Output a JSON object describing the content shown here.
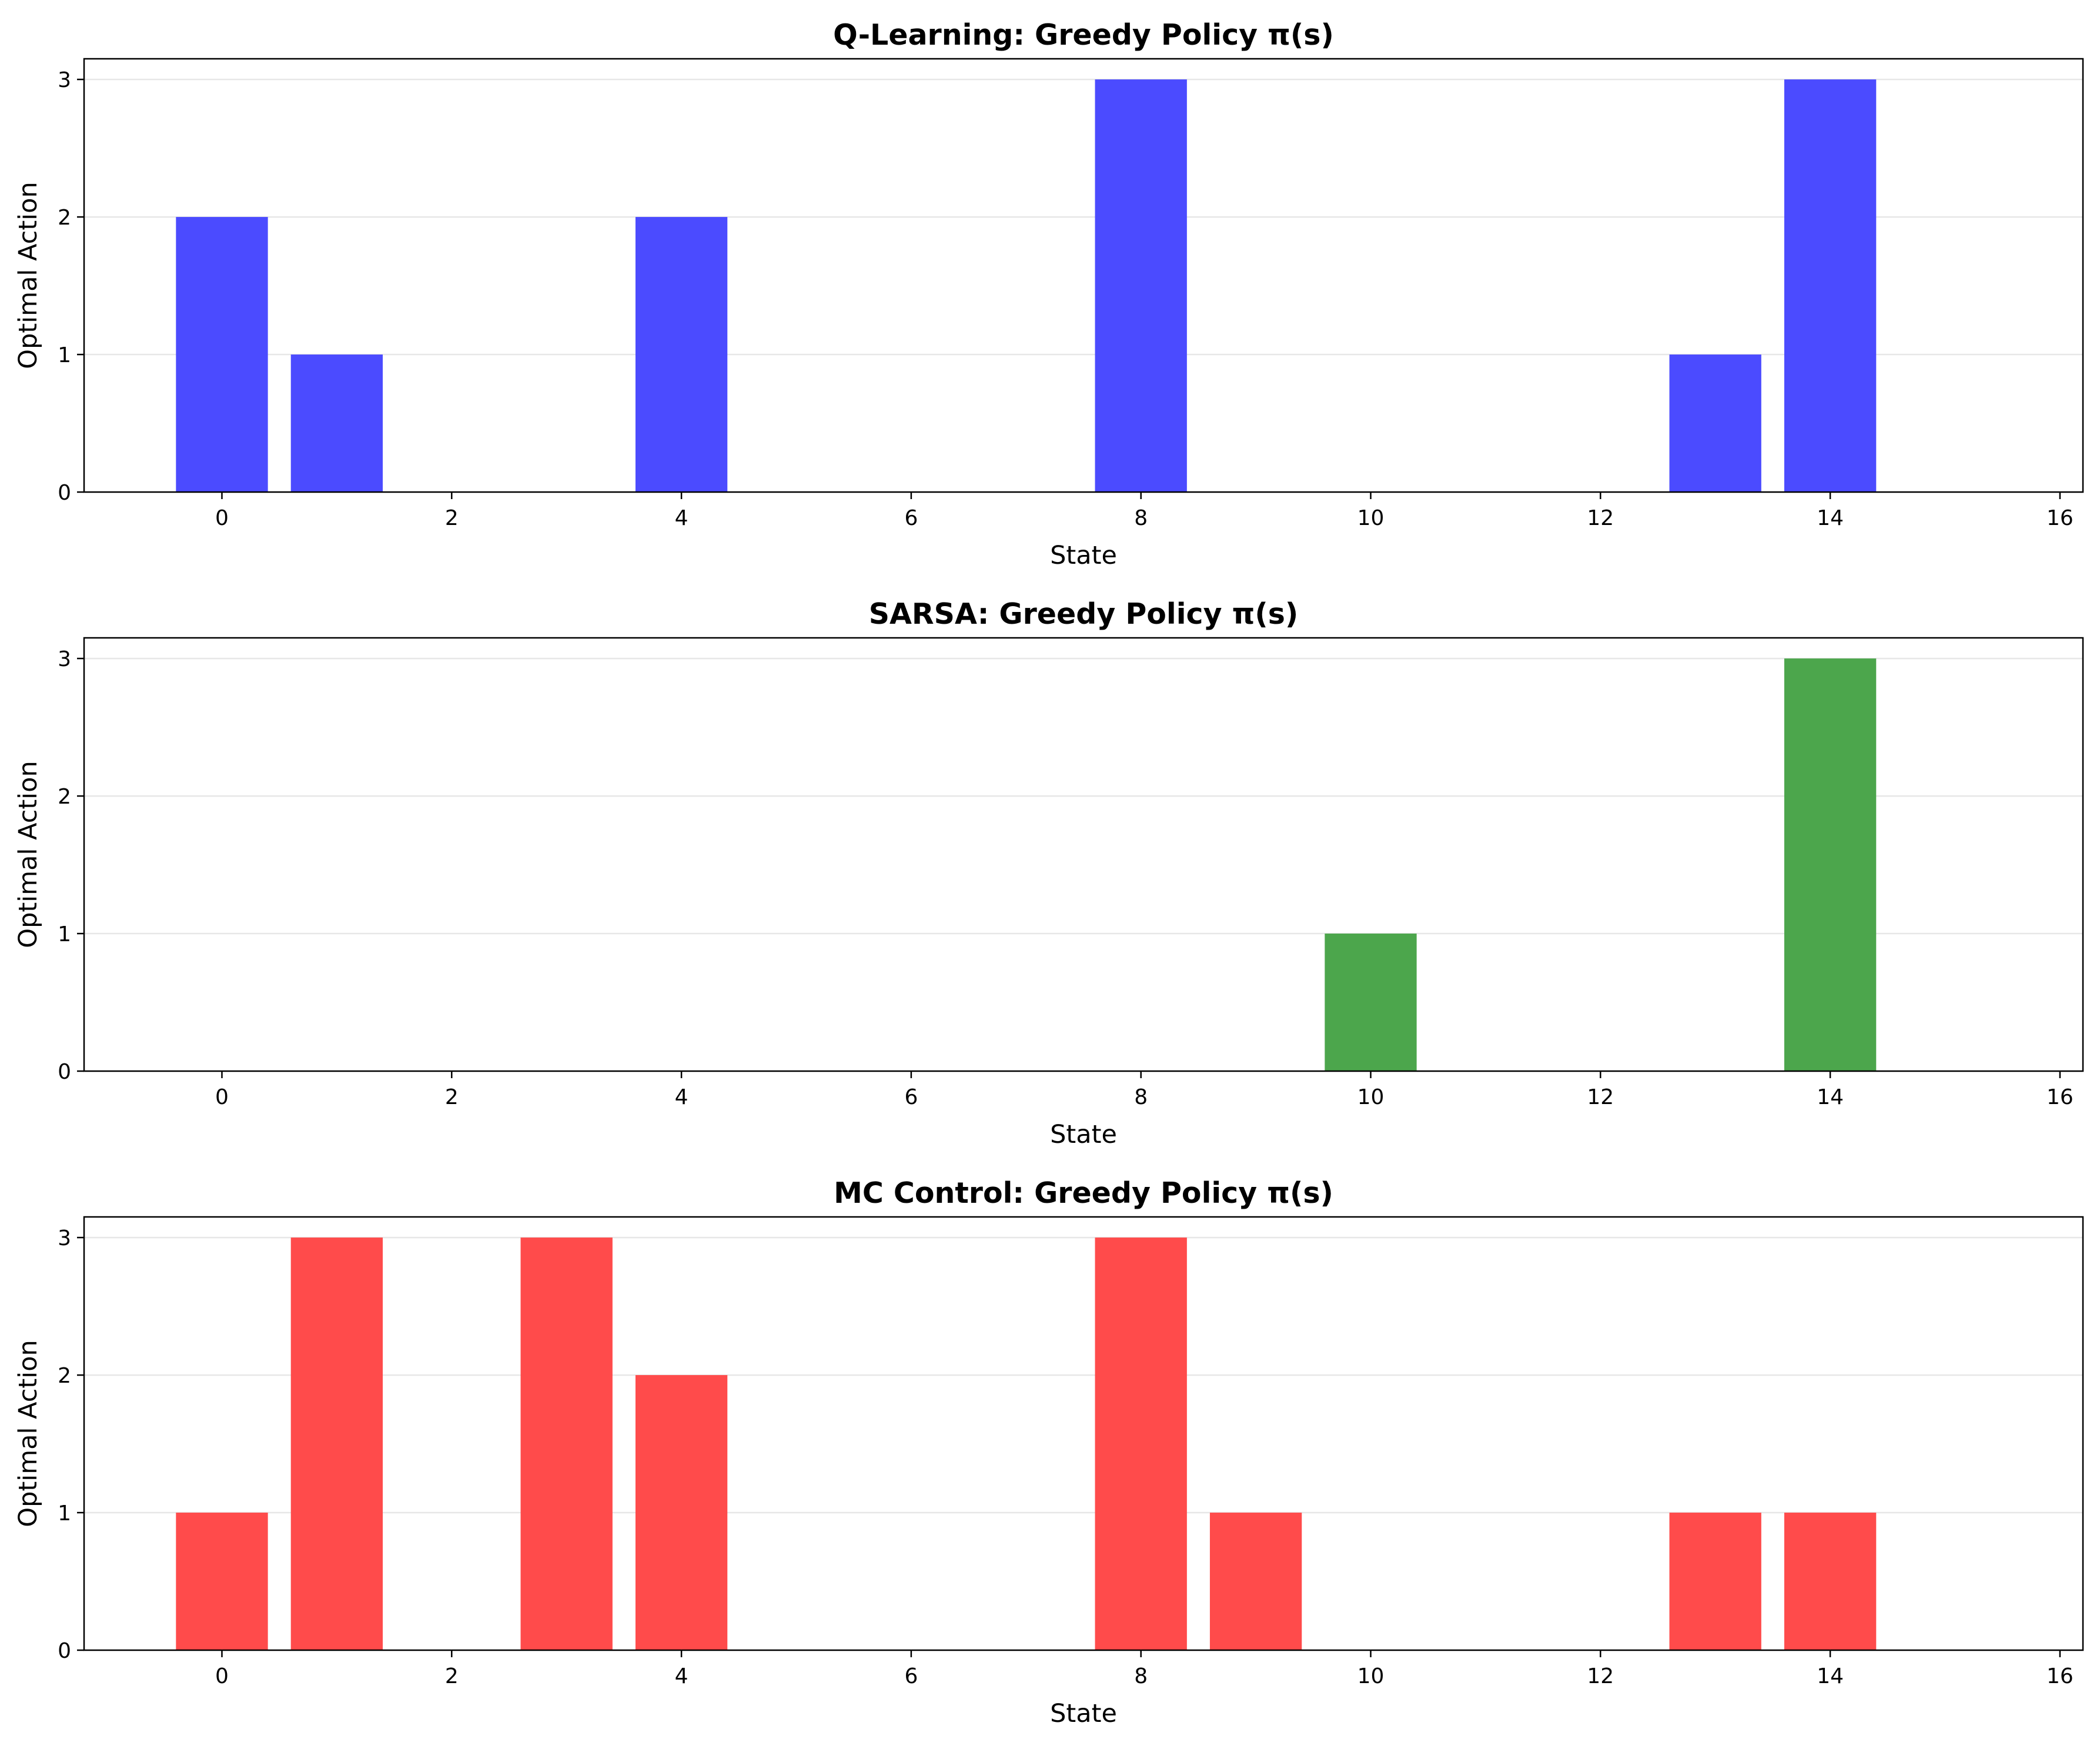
{
  "chart_data": [
    {
      "type": "bar",
      "title": "Q-Learning: Greedy Policy π(s)",
      "xlabel": "State",
      "ylabel": "Optimal Action",
      "x": [
        0,
        1,
        2,
        3,
        4,
        5,
        6,
        7,
        8,
        9,
        10,
        11,
        12,
        13,
        14,
        15
      ],
      "values": [
        2,
        1,
        0,
        0,
        2,
        0,
        0,
        0,
        3,
        0,
        0,
        0,
        0,
        1,
        3,
        0
      ],
      "xlim": [
        -1.2,
        16.2
      ],
      "ylim": [
        0,
        3.15
      ],
      "xticks": [
        "0",
        "2",
        "4",
        "6",
        "8",
        "10",
        "12",
        "14",
        "16"
      ],
      "yticks": [
        "0",
        "1",
        "2",
        "3"
      ],
      "color": "#4b4bff",
      "grid": "y"
    },
    {
      "type": "bar",
      "title": "SARSA: Greedy Policy π(s)",
      "xlabel": "State",
      "ylabel": "Optimal Action",
      "x": [
        0,
        1,
        2,
        3,
        4,
        5,
        6,
        7,
        8,
        9,
        10,
        11,
        12,
        13,
        14,
        15
      ],
      "values": [
        0,
        0,
        0,
        0,
        0,
        0,
        0,
        0,
        0,
        0,
        1,
        0,
        0,
        0,
        3,
        0
      ],
      "xlim": [
        -1.2,
        16.2
      ],
      "ylim": [
        0,
        3.15
      ],
      "xticks": [
        "0",
        "2",
        "4",
        "6",
        "8",
        "10",
        "12",
        "14",
        "16"
      ],
      "yticks": [
        "0",
        "1",
        "2",
        "3"
      ],
      "color": "#4ca64c",
      "grid": "y"
    },
    {
      "type": "bar",
      "title": "MC Control: Greedy Policy π(s)",
      "xlabel": "State",
      "ylabel": "Optimal Action",
      "x": [
        0,
        1,
        2,
        3,
        4,
        5,
        6,
        7,
        8,
        9,
        10,
        11,
        12,
        13,
        14,
        15
      ],
      "values": [
        1,
        3,
        0,
        3,
        2,
        0,
        0,
        0,
        3,
        1,
        0,
        0,
        0,
        1,
        1,
        0
      ],
      "xlim": [
        -1.2,
        16.2
      ],
      "ylim": [
        0,
        3.15
      ],
      "xticks": [
        "0",
        "2",
        "4",
        "6",
        "8",
        "10",
        "12",
        "14",
        "16"
      ],
      "yticks": [
        "0",
        "1",
        "2",
        "3"
      ],
      "color": "#ff4b4b",
      "grid": "y"
    }
  ]
}
